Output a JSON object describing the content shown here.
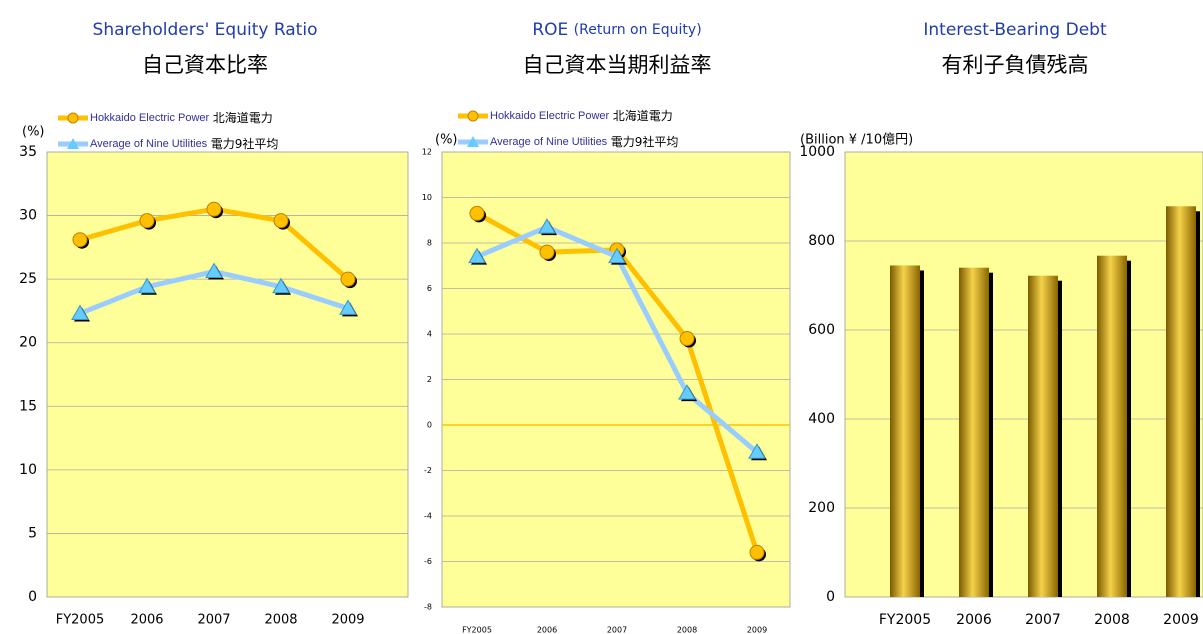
{
  "chart_data": [
    {
      "type": "line",
      "title": "Shareholders' Equity Ratio",
      "subtitle": "自己資本比率",
      "y_label": "(%)",
      "categories": [
        "FY2005",
        "2006",
        "2007",
        "2008",
        "2009"
      ],
      "series": [
        {
          "name": "Hokkaido Electric Power",
          "name_ja": "北海道電力",
          "color": "#ffc000",
          "marker": "circle",
          "values": [
            28.1,
            29.6,
            30.5,
            29.6,
            25.0
          ]
        },
        {
          "name": "Average of Nine Utilities",
          "name_ja": "電力9社平均",
          "color": "#99ccff",
          "marker": "triangle",
          "values": [
            22.3,
            24.4,
            25.6,
            24.4,
            22.7
          ]
        }
      ],
      "ylim": [
        0,
        35
      ],
      "yticks": [
        0,
        5,
        10,
        15,
        20,
        25,
        30,
        35
      ],
      "grid": true
    },
    {
      "type": "line",
      "title": "ROE",
      "title_note": "(Return on Equity)",
      "subtitle": "自己資本当期利益率",
      "y_label": "(%)",
      "categories": [
        "FY2005",
        "2006",
        "2007",
        "2008",
        "2009"
      ],
      "series": [
        {
          "name": "Hokkaido Electric Power",
          "name_ja": "北海道電力",
          "color": "#ffc000",
          "marker": "circle",
          "values": [
            9.3,
            7.6,
            7.7,
            3.8,
            -5.6
          ]
        },
        {
          "name": "Average of Nine Utilities",
          "name_ja": "電力9社平均",
          "color": "#99ccff",
          "marker": "triangle",
          "values": [
            7.4,
            8.7,
            7.4,
            1.4,
            -1.2
          ]
        }
      ],
      "ylim": [
        -8,
        12
      ],
      "yticks": [
        -8,
        -6,
        -4,
        -2,
        0,
        2,
        4,
        6,
        8,
        10,
        12
      ],
      "grid": true
    },
    {
      "type": "bar",
      "title": "Interest-Bearing Debt",
      "subtitle": "有利子負債残高",
      "y_label": "(Billion ¥ /10億円)",
      "categories": [
        "FY2005",
        "2006",
        "2007",
        "2008",
        "2009"
      ],
      "values": [
        745,
        740,
        722,
        767,
        878
      ],
      "color": "#d4a017",
      "ylim": [
        0,
        1000
      ],
      "yticks": [
        0,
        200,
        400,
        600,
        800,
        1000
      ],
      "grid": true
    }
  ]
}
